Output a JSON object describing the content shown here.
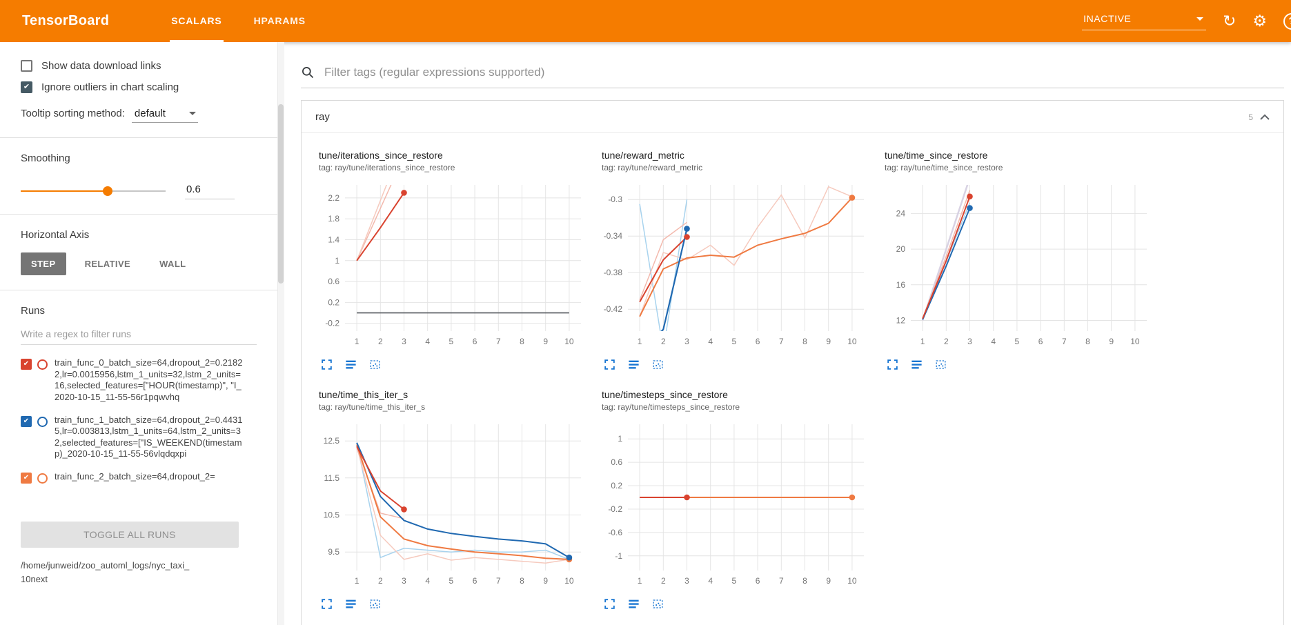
{
  "header": {
    "logo": "TensorBoard",
    "tabs": [
      {
        "label": "SCALARS",
        "active": true
      },
      {
        "label": "HPARAMS",
        "active": false
      }
    ],
    "status_dropdown": "INACTIVE",
    "icons": {
      "refresh_glyph": "↻",
      "gear_glyph": "⚙",
      "help_glyph": "?"
    },
    "accent_color": "#f57c00"
  },
  "sidebar": {
    "options": [
      {
        "label": "Show data download links",
        "checked": false
      },
      {
        "label": "Ignore outliers in chart scaling",
        "checked": true
      }
    ],
    "tooltip_sorting": {
      "label": "Tooltip sorting method:",
      "value": "default"
    },
    "smoothing": {
      "label": "Smoothing",
      "value": "0.6",
      "percent": 60
    },
    "horizontal_axis": {
      "label": "Horizontal Axis",
      "options": [
        "STEP",
        "RELATIVE",
        "WALL"
      ],
      "selected": "STEP"
    },
    "runs": {
      "label": "Runs",
      "filter_placeholder": "Write a regex to filter runs",
      "items": [
        {
          "name": "train_func_0_batch_size=64,dropout_2=0.21822,lr=0.0015956,lstm_1_units=32,lstm_2_units=16,selected_features=[\"HOUR(timestamp)\", \"I_2020-10-15_11-55-56r1pqwvhq",
          "checked": true,
          "color": "#d9432f"
        },
        {
          "name": "train_func_1_batch_size=64,dropout_2=0.44315,lr=0.003813,lstm_1_units=64,lstm_2_units=32,selected_features=[\"IS_WEEKEND(timestamp)_2020-10-15_11-55-56vlqdqxpi",
          "checked": true,
          "color": "#2069b1"
        },
        {
          "name": "train_func_2_batch_size=64,dropout_2=",
          "checked": true,
          "color": "#ef7a42"
        }
      ],
      "toggle_all_label": "TOGGLE ALL RUNS",
      "path_lines": [
        "/home/junweid/zoo_automl_logs/nyc_taxi_",
        "10next"
      ]
    }
  },
  "main": {
    "filter_placeholder": "Filter tags (regular expressions supported)",
    "group": {
      "title": "ray",
      "count": "5"
    }
  },
  "chart_data": [
    {
      "type": "line",
      "title": "tune/iterations_since_restore",
      "tag": "tag: ray/tune/iterations_since_restore",
      "xticks": [
        1,
        2,
        3,
        4,
        5,
        6,
        7,
        8,
        9,
        10
      ],
      "xlim": [
        0.5,
        10.5
      ],
      "yticks": [
        -0.2,
        0.2,
        0.6,
        1,
        1.4,
        1.8,
        2.2
      ],
      "ylim": [
        -0.35,
        2.45
      ],
      "grid": true,
      "series": [
        {
          "name": "run-0-raw",
          "color": "#f3b9ad",
          "width": 1.5,
          "x": [
            1,
            2,
            3
          ],
          "y": [
            1,
            2,
            3
          ]
        },
        {
          "name": "run-2-raw",
          "color": "#f6cabe",
          "width": 1.5,
          "x": [
            1,
            2,
            3
          ],
          "y": [
            1,
            2.15,
            3.3
          ]
        },
        {
          "name": "flat-zero-run",
          "color": "#5f6368",
          "width": 1.8,
          "x": [
            1,
            2,
            3,
            4,
            5,
            6,
            7,
            8,
            9,
            10
          ],
          "y": [
            0,
            0,
            0,
            0,
            0,
            0,
            0,
            0,
            0,
            0
          ]
        },
        {
          "name": "run-0-smoothed",
          "color": "#d9432f",
          "width": 2,
          "x": [
            1,
            2,
            3
          ],
          "y": [
            1,
            1.63,
            2.3
          ],
          "end_dot": true
        }
      ]
    },
    {
      "type": "line",
      "title": "tune/reward_metric",
      "tag": "tag: ray/tune/reward_metric",
      "xticks": [
        1,
        2,
        3,
        4,
        5,
        6,
        7,
        8,
        9,
        10
      ],
      "xlim": [
        0.5,
        10.5
      ],
      "yticks": [
        -0.42,
        -0.38,
        -0.34,
        -0.3
      ],
      "ylim": [
        -0.444,
        -0.284
      ],
      "grid": true,
      "series": [
        {
          "name": "run-1-raw",
          "color": "#a8d3ee",
          "width": 1.5,
          "x": [
            1,
            2,
            3
          ],
          "y": [
            -0.305,
            -0.465,
            -0.3
          ]
        },
        {
          "name": "run-2-raw",
          "color": "#f6cabe",
          "width": 1.5,
          "x": [
            1,
            2,
            3,
            4,
            5,
            6,
            7,
            8,
            9,
            10
          ],
          "y": [
            -0.428,
            -0.358,
            -0.366,
            -0.35,
            -0.372,
            -0.33,
            -0.295,
            -0.342,
            -0.286,
            -0.297
          ]
        },
        {
          "name": "run-0-raw",
          "color": "#f3b9ad",
          "width": 1.5,
          "x": [
            1,
            2,
            3
          ],
          "y": [
            -0.41,
            -0.344,
            -0.325
          ]
        },
        {
          "name": "run-2-smoothed",
          "color": "#ef7a42",
          "width": 2,
          "x": [
            1,
            2,
            3,
            4,
            5,
            6,
            7,
            8,
            9,
            10
          ],
          "y": [
            -0.428,
            -0.376,
            -0.364,
            -0.361,
            -0.363,
            -0.35,
            -0.343,
            -0.337,
            -0.326,
            -0.298
          ],
          "end_dot": true
        },
        {
          "name": "run-0-smoothed",
          "color": "#d9432f",
          "width": 2,
          "x": [
            1,
            2,
            3
          ],
          "y": [
            -0.412,
            -0.366,
            -0.341
          ],
          "end_dot": true
        },
        {
          "name": "run-1-smoothed",
          "color": "#2069b1",
          "width": 2.2,
          "x": [
            1,
            2,
            3
          ],
          "y": [
            -0.47,
            -0.442,
            -0.332
          ],
          "end_dot": true
        }
      ]
    },
    {
      "type": "line",
      "title": "tune/time_since_restore",
      "tag": "tag: ray/tune/time_since_restore",
      "xticks": [
        1,
        2,
        3,
        4,
        5,
        6,
        7,
        8,
        9,
        10
      ],
      "xlim": [
        0.5,
        10.5
      ],
      "yticks": [
        12,
        16,
        20,
        24
      ],
      "ylim": [
        10.8,
        27.2
      ],
      "grid": true,
      "series": [
        {
          "name": "faint-raw",
          "color": "#d8d2e3",
          "width": 2.5,
          "x": [
            1,
            2,
            3
          ],
          "y": [
            12,
            20,
            28
          ]
        },
        {
          "name": "run-0-raw",
          "color": "#f3b9ad",
          "width": 1.5,
          "x": [
            1,
            2,
            3
          ],
          "y": [
            12.2,
            19.2,
            26.6
          ]
        },
        {
          "name": "run-1-raw",
          "color": "#a8d3ee",
          "width": 1.5,
          "x": [
            1,
            2,
            3
          ],
          "y": [
            12.1,
            18.6,
            25.2
          ]
        },
        {
          "name": "run-1-smoothed",
          "color": "#2069b1",
          "width": 2,
          "x": [
            1,
            2,
            3
          ],
          "y": [
            12.1,
            18.1,
            24.6
          ],
          "end_dot": true
        },
        {
          "name": "run-0-smoothed",
          "color": "#d9432f",
          "width": 2,
          "x": [
            1,
            2,
            3
          ],
          "y": [
            12.2,
            18.7,
            25.9
          ],
          "end_dot": true
        }
      ]
    },
    {
      "type": "line",
      "title": "tune/time_this_iter_s",
      "tag": "tag: ray/tune/time_this_iter_s",
      "xticks": [
        1,
        2,
        3,
        4,
        5,
        6,
        7,
        8,
        9,
        10
      ],
      "xlim": [
        0.5,
        10.5
      ],
      "yticks": [
        9.5,
        10.5,
        11.5,
        12.5
      ],
      "ylim": [
        9.0,
        12.95
      ],
      "grid": true,
      "series": [
        {
          "name": "run-1-raw",
          "color": "#a8d3ee",
          "width": 1.5,
          "x": [
            1,
            2,
            3,
            4,
            5,
            6,
            7,
            8,
            9,
            10
          ],
          "y": [
            12.45,
            9.35,
            9.6,
            9.55,
            9.5,
            9.55,
            9.5,
            9.5,
            9.55,
            9.3
          ]
        },
        {
          "name": "run-2-raw",
          "color": "#f6cabe",
          "width": 1.5,
          "x": [
            1,
            2,
            3,
            4,
            5,
            6,
            7,
            8,
            9,
            10
          ],
          "y": [
            12.35,
            9.95,
            9.3,
            9.45,
            9.28,
            9.35,
            9.3,
            9.25,
            9.2,
            9.3
          ]
        },
        {
          "name": "run-0-raw",
          "color": "#f3b9ad",
          "width": 1.5,
          "x": [
            1,
            2,
            3
          ],
          "y": [
            12.3,
            10.55,
            10.4
          ]
        },
        {
          "name": "run-2-smoothed",
          "color": "#ef7a42",
          "width": 2,
          "x": [
            1,
            2,
            3,
            4,
            5,
            6,
            7,
            8,
            9,
            10
          ],
          "y": [
            12.4,
            10.45,
            9.85,
            9.67,
            9.58,
            9.5,
            9.45,
            9.4,
            9.33,
            9.3
          ],
          "end_dot": true
        },
        {
          "name": "run-1-smoothed",
          "color": "#2069b1",
          "width": 2,
          "x": [
            1,
            2,
            3,
            4,
            5,
            6,
            7,
            8,
            9,
            10
          ],
          "y": [
            12.45,
            11.0,
            10.35,
            10.12,
            10.0,
            9.92,
            9.85,
            9.8,
            9.72,
            9.35
          ],
          "end_dot": true
        },
        {
          "name": "run-0-smoothed",
          "color": "#d9432f",
          "width": 2,
          "x": [
            1,
            2,
            3
          ],
          "y": [
            12.35,
            11.15,
            10.65
          ],
          "end_dot": true
        }
      ]
    },
    {
      "type": "line",
      "title": "tune/timesteps_since_restore",
      "tag": "tag: ray/tune/timesteps_since_restore",
      "xticks": [
        1,
        2,
        3,
        4,
        5,
        6,
        7,
        8,
        9,
        10
      ],
      "xlim": [
        0.5,
        10.5
      ],
      "yticks": [
        -1,
        -0.6,
        -0.2,
        0.2,
        0.6,
        1
      ],
      "ylim": [
        -1.25,
        1.25
      ],
      "grid": true,
      "series": [
        {
          "name": "run-2-smoothed",
          "color": "#ef7a42",
          "width": 2,
          "x": [
            1,
            2,
            3,
            4,
            5,
            6,
            7,
            8,
            9,
            10
          ],
          "y": [
            0,
            0,
            0,
            0,
            0,
            0,
            0,
            0,
            0,
            0
          ],
          "end_dot": true
        },
        {
          "name": "run-0-smoothed",
          "color": "#d9432f",
          "width": 2,
          "x": [
            1,
            2,
            3
          ],
          "y": [
            0,
            0,
            0
          ],
          "end_dot": true
        }
      ]
    }
  ]
}
